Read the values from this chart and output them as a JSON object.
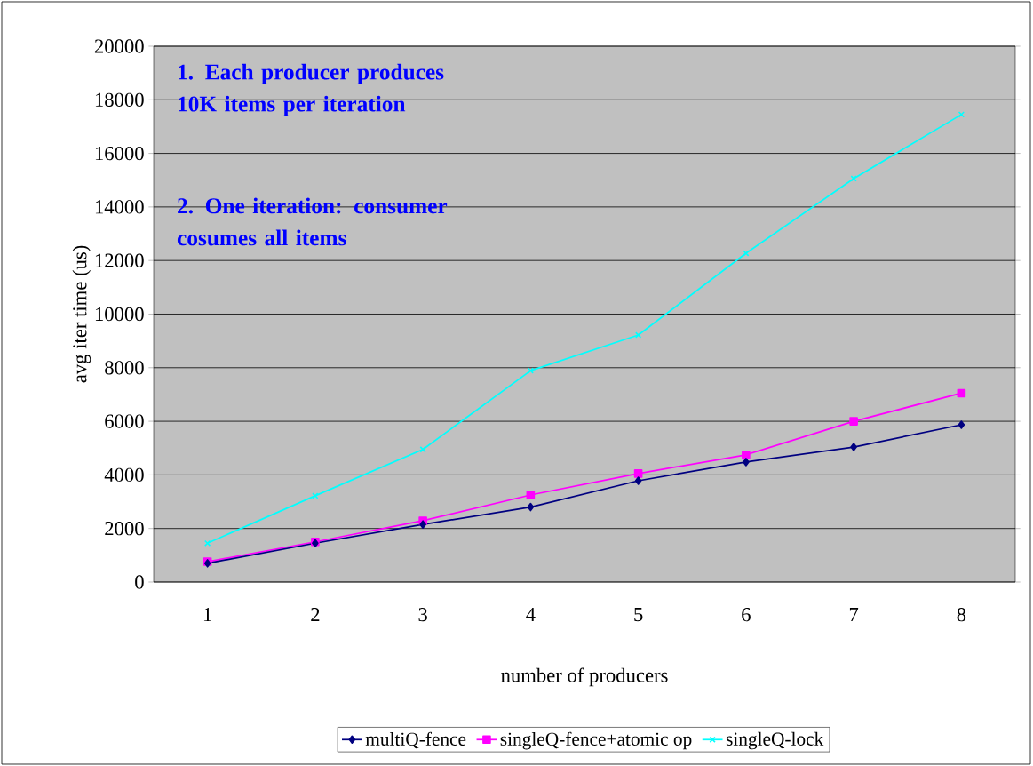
{
  "chart_data": {
    "type": "line",
    "xlabel": "number of producers",
    "ylabel": "avg iter time (us)",
    "categories": [
      "1",
      "2",
      "3",
      "4",
      "5",
      "6",
      "7",
      "8"
    ],
    "series": [
      {
        "name": "multiQ-fence",
        "color": "#000080",
        "marker": "diamond",
        "values": [
          700,
          1450,
          2150,
          2800,
          3780,
          4480,
          5040,
          5870
        ]
      },
      {
        "name": "singleQ-fence+atomic op",
        "color": "#ff00ff",
        "marker": "square",
        "values": [
          760,
          1500,
          2290,
          3250,
          4050,
          4750,
          6000,
          7050
        ]
      },
      {
        "name": "singleQ-lock",
        "color": "#00ffff",
        "marker": "cross",
        "values": [
          1450,
          3220,
          4950,
          7890,
          9220,
          12270,
          15060,
          17450
        ]
      }
    ],
    "ylim": [
      0,
      20000
    ],
    "yticks": [
      0,
      2000,
      4000,
      6000,
      8000,
      10000,
      12000,
      14000,
      16000,
      18000,
      20000
    ],
    "grid": "y",
    "legend": "bottom",
    "annotations": [
      "1. Each producer produces 10K items per iteration",
      "2. One iteration: consumer cosumes all items"
    ]
  }
}
